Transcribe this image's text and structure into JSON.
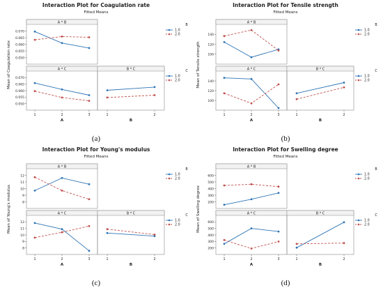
{
  "charts": [
    {
      "id": "a",
      "caption": "(a)",
      "title": "Interaction Plot for Coagulation rate",
      "subtitle": "Fitted Means",
      "ylabel": "Mean of Coagulation rate",
      "xlabel": "A",
      "panel2_xlabel": "B",
      "top_panel_label": "A * B",
      "mid_left_label": "A * C",
      "mid_right_label": "B * C",
      "legend1": {
        "title": "B",
        "items": [
          "1.0",
          "2.0"
        ]
      },
      "legend2": {
        "title": "C",
        "items": [
          "1.0",
          "2.0"
        ]
      },
      "top_yticks": [
        "0.070",
        "0.065",
        "0.060",
        "0.055",
        "0.050"
      ],
      "mid_yticks": [
        "0.070",
        "0.065",
        "0.060",
        "0.055",
        "0.050"
      ]
    },
    {
      "id": "b",
      "caption": "(b)",
      "title": "Interaction Plot for Tensile strength",
      "subtitle": "Fitted Means",
      "ylabel": "Mean of Tensile strength",
      "xlabel": "A",
      "panel2_xlabel": "B",
      "top_panel_label": "A * B",
      "mid_left_label": "A * C",
      "mid_right_label": "B * C",
      "legend1": {
        "title": "B",
        "items": [
          "1.0",
          "2.0"
        ]
      },
      "legend2": {
        "title": "C",
        "items": [
          "1.0",
          "2.0"
        ]
      },
      "top_yticks": [
        "140",
        "120",
        "100"
      ],
      "mid_yticks": [
        "140",
        "120",
        "100"
      ]
    },
    {
      "id": "c",
      "caption": "(c)",
      "title": "Interaction Plot for Young's modulus",
      "subtitle": "Fitted Means",
      "ylabel": "Mean of Young's modulus",
      "xlabel": "A",
      "panel2_xlabel": "B",
      "top_panel_label": "A * B",
      "mid_left_label": "A * C",
      "mid_right_label": "B * C",
      "legend1": {
        "title": "B",
        "items": [
          "1.0",
          "2.0"
        ]
      },
      "legend2": {
        "title": "C",
        "items": [
          "1.0",
          "2.0"
        ]
      },
      "top_yticks": [
        "12",
        "11",
        "10",
        "9",
        "8"
      ],
      "mid_yticks": [
        "12",
        "11",
        "10",
        "9",
        "8"
      ]
    },
    {
      "id": "d",
      "caption": "(d)",
      "title": "Interaction Plot for Swelling degree",
      "subtitle": "Fitted Means",
      "ylabel": "Mean of Swelling degree",
      "xlabel": "A",
      "panel2_xlabel": "B",
      "top_panel_label": "A * B",
      "mid_left_label": "A * C",
      "mid_right_label": "B * C",
      "legend1": {
        "title": "B",
        "items": [
          "1.0",
          "2.0"
        ]
      },
      "legend2": {
        "title": "C",
        "items": [
          "1.0",
          "2.0"
        ]
      },
      "top_yticks": [
        "600",
        "500",
        "400",
        "300",
        "200"
      ],
      "mid_yticks": [
        "600",
        "500",
        "400",
        "300",
        "200"
      ]
    }
  ],
  "colors": {
    "series1": "#2e75b6",
    "series2": "#c0504d",
    "panel_border": "#888888",
    "label_bg": "#f2f2f2"
  },
  "chart_data": [
    {
      "type": "line",
      "title": "Interaction Plot for Coagulation rate",
      "ylabel": "Mean of Coagulation rate",
      "xlabel": "A",
      "panels": [
        {
          "name": "A * B",
          "x": [
            1,
            2,
            3
          ],
          "ylim": [
            0.05,
            0.072
          ],
          "series": [
            {
              "name": "1.0",
              "values": [
                0.0685,
                0.0615,
                0.0585
              ]
            },
            {
              "name": "2.0",
              "values": [
                0.0635,
                0.0655,
                0.065
              ]
            }
          ]
        },
        {
          "name": "A * C",
          "x": [
            1,
            2,
            3
          ],
          "ylim": [
            0.05,
            0.072
          ],
          "series": [
            {
              "name": "1.0",
              "values": [
                0.0655,
                0.0615,
                0.058
              ]
            },
            {
              "name": "2.0",
              "values": [
                0.0605,
                0.0565,
                0.0545
              ]
            }
          ]
        },
        {
          "name": "B * C",
          "x": [
            1,
            2
          ],
          "ylim": [
            0.05,
            0.072
          ],
          "series": [
            {
              "name": "1.0",
              "values": [
                0.061,
                0.063
              ]
            },
            {
              "name": "2.0",
              "values": [
                0.0565,
                0.058
              ]
            }
          ]
        }
      ]
    },
    {
      "type": "line",
      "title": "Interaction Plot for Tensile strength",
      "ylabel": "Mean of Tensile strength",
      "xlabel": "A",
      "panels": [
        {
          "name": "A * B",
          "x": [
            1,
            2,
            3
          ],
          "ylim": [
            85,
            145
          ],
          "series": [
            {
              "name": "1.0",
              "values": [
                118,
                93,
                106
              ]
            },
            {
              "name": "2.0",
              "values": [
                128,
                138,
                104
              ]
            }
          ]
        },
        {
          "name": "A * C",
          "x": [
            1,
            2,
            3
          ],
          "ylim": [
            85,
            145
          ],
          "series": [
            {
              "name": "1.0",
              "values": [
                136,
                134,
                85
              ]
            },
            {
              "name": "2.0",
              "values": [
                110,
                93,
                125
              ]
            }
          ]
        },
        {
          "name": "B * C",
          "x": [
            1,
            2
          ],
          "ylim": [
            85,
            145
          ],
          "series": [
            {
              "name": "1.0",
              "values": [
                110,
                128
              ]
            },
            {
              "name": "2.0",
              "values": [
                100,
                120
              ]
            }
          ]
        }
      ]
    },
    {
      "type": "line",
      "title": "Interaction Plot for Young's modulus",
      "ylabel": "Mean of Young's modulus",
      "xlabel": "A",
      "panels": [
        {
          "name": "A * B",
          "x": [
            1,
            2,
            3
          ],
          "ylim": [
            7.8,
            12.4
          ],
          "series": [
            {
              "name": "1.0",
              "values": [
                9.8,
                11.4,
                10.6
              ]
            },
            {
              "name": "2.0",
              "values": [
                11.5,
                9.8,
                8.7
              ]
            }
          ]
        },
        {
          "name": "A * C",
          "x": [
            1,
            2,
            3
          ],
          "ylim": [
            7.8,
            12.4
          ],
          "series": [
            {
              "name": "1.0",
              "values": [
                11.6,
                10.8,
                8.0
              ]
            },
            {
              "name": "2.0",
              "values": [
                9.7,
                10.4,
                11.2
              ]
            }
          ]
        },
        {
          "name": "B * C",
          "x": [
            1,
            2
          ],
          "ylim": [
            7.8,
            12.4
          ],
          "series": [
            {
              "name": "1.0",
              "values": [
                10.3,
                9.9
              ]
            },
            {
              "name": "2.0",
              "values": [
                10.8,
                10.1
              ]
            }
          ]
        }
      ]
    },
    {
      "type": "line",
      "title": "Interaction Plot for Swelling degree",
      "ylabel": "Mean of Swelling degree",
      "xlabel": "A",
      "panels": [
        {
          "name": "A * B",
          "x": [
            1,
            2,
            3
          ],
          "ylim": [
            180,
            640
          ],
          "series": [
            {
              "name": "1.0",
              "values": [
                200,
                270,
                350
              ]
            },
            {
              "name": "2.0",
              "values": [
                445,
                460,
                430
              ]
            }
          ]
        },
        {
          "name": "A * C",
          "x": [
            1,
            2,
            3
          ],
          "ylim": [
            180,
            640
          ],
          "series": [
            {
              "name": "1.0",
              "values": [
                290,
                490,
                450
              ]
            },
            {
              "name": "2.0",
              "values": [
                340,
                230,
                320
              ]
            }
          ]
        },
        {
          "name": "B * C",
          "x": [
            1,
            2
          ],
          "ylim": [
            180,
            640
          ],
          "series": [
            {
              "name": "1.0",
              "values": [
                240,
                570
              ]
            },
            {
              "name": "2.0",
              "values": [
                290,
                300
              ]
            }
          ]
        }
      ]
    }
  ]
}
